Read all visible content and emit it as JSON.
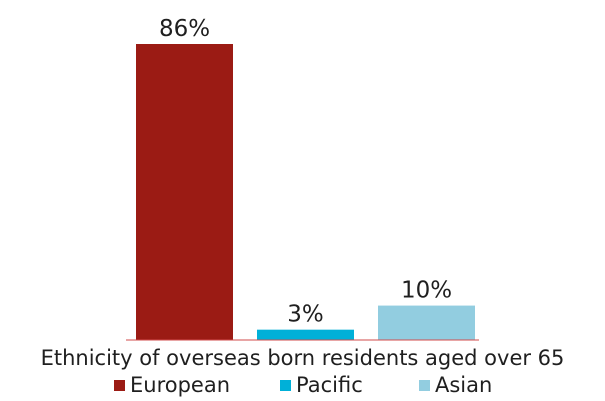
{
  "chart_data": {
    "type": "bar",
    "categories": [
      "European",
      "Pacific",
      "Asian"
    ],
    "values": [
      86,
      3,
      10
    ],
    "data_labels": [
      "86%",
      "3%",
      "10%"
    ],
    "title": "",
    "xlabel": "Ethnicity of overseas born residents aged over 65",
    "ylabel": "",
    "legend": {
      "placement": "bottom",
      "items": [
        "European",
        "Pacific",
        "Asian"
      ]
    },
    "colors": [
      "#9B1B14",
      "#00B0D8",
      "#92CDE0"
    ],
    "axis_color": "#D24B4B",
    "ylim": [
      0,
      86
    ],
    "grid": false
  }
}
